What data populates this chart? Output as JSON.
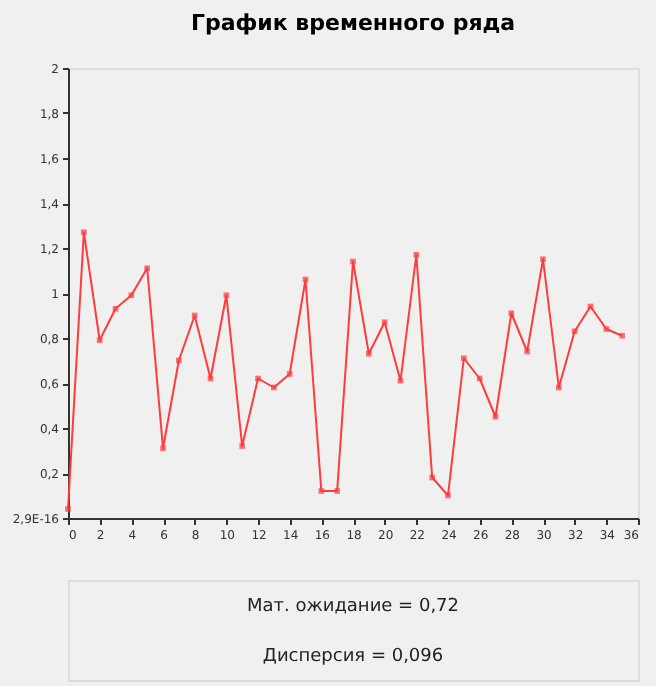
{
  "chart_data": {
    "type": "line",
    "title": "График временного ряда",
    "x": [
      0,
      1,
      2,
      3,
      4,
      5,
      6,
      7,
      8,
      9,
      10,
      11,
      12,
      13,
      14,
      15,
      16,
      17,
      18,
      19,
      20,
      21,
      22,
      23,
      24,
      25,
      26,
      27,
      28,
      29,
      30,
      31,
      32,
      33,
      34,
      35
    ],
    "series": [
      {
        "color": "#ff3b3b",
        "values": [
          0.04,
          1.27,
          0.79,
          0.93,
          0.99,
          1.11,
          0.31,
          0.7,
          0.9,
          0.62,
          0.99,
          0.32,
          0.62,
          0.58,
          0.64,
          1.06,
          0.12,
          0.12,
          1.14,
          0.73,
          0.87,
          0.61,
          1.17,
          0.18,
          0.1,
          0.71,
          0.62,
          0.45,
          0.91,
          0.74,
          1.15,
          0.58,
          0.83,
          0.94,
          0.84,
          0.81
        ]
      }
    ],
    "xlim": [
      0,
      36
    ],
    "xticks": [
      0,
      2,
      4,
      6,
      8,
      10,
      12,
      14,
      16,
      18,
      20,
      22,
      24,
      26,
      28,
      30,
      32,
      34,
      36
    ],
    "ylim": [
      0,
      2
    ],
    "yticks": [
      {
        "value": 0,
        "label": "2,9E-16"
      },
      {
        "value": 0.2,
        "label": "0,2"
      },
      {
        "value": 0.4,
        "label": "0,4"
      },
      {
        "value": 0.6,
        "label": "0,6"
      },
      {
        "value": 0.8,
        "label": "0,8"
      },
      {
        "value": 1,
        "label": "1"
      },
      {
        "value": 1.2,
        "label": "1,2"
      },
      {
        "value": 1.4,
        "label": "1,4"
      },
      {
        "value": 1.6,
        "label": "1,6"
      },
      {
        "value": 1.8,
        "label": "1,8"
      },
      {
        "value": 2,
        "label": "2"
      }
    ],
    "marker": "square",
    "line_style": "solid",
    "grid": false,
    "annotations": [
      "Мат. ожидание = 0,72",
      "Дисперсия = 0,096"
    ]
  }
}
